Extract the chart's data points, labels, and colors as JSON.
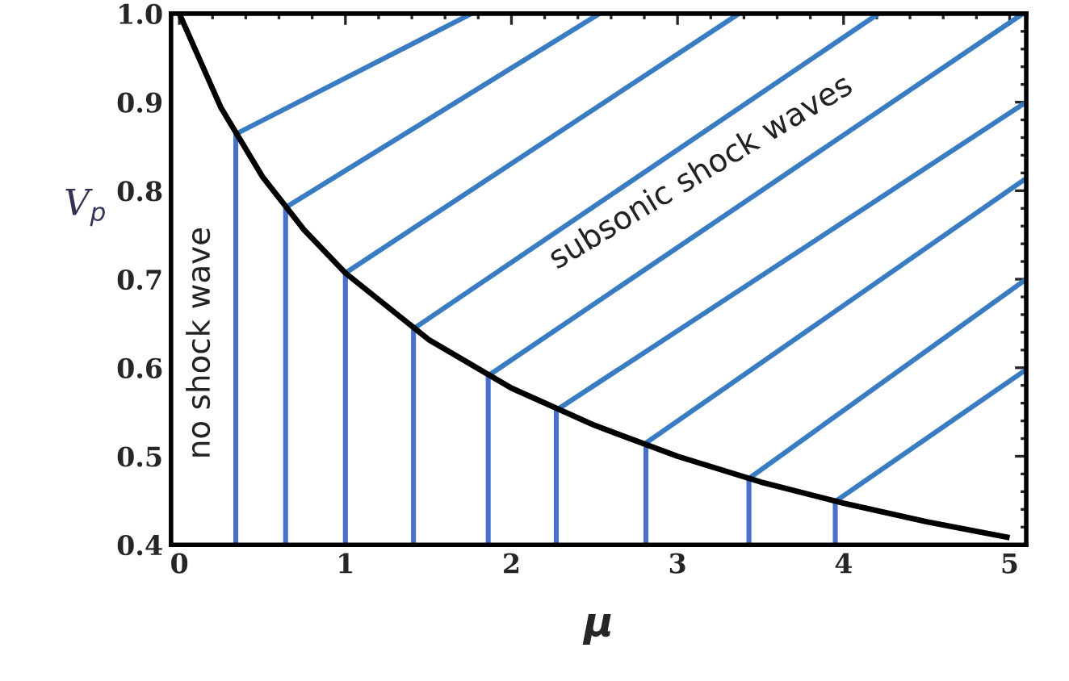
{
  "chart_data": {
    "type": "line",
    "xlabel": "μ",
    "ylabel": "V$_{p}$",
    "xlim": [
      -0.05,
      5.1
    ],
    "ylim": [
      0.4,
      1.0
    ],
    "xticks": [
      0,
      1,
      2,
      3,
      4,
      5
    ],
    "yticks": [
      {
        "value": 0.4,
        "label": "0.4"
      },
      {
        "value": 0.5,
        "label": "0.5"
      },
      {
        "value": 0.6,
        "label": "0.6"
      },
      {
        "value": 0.7,
        "label": "0.7"
      },
      {
        "value": 0.8,
        "label": "0.8"
      },
      {
        "value": 0.9,
        "label": "0.9"
      },
      {
        "value": 1.0,
        "label": "1.0"
      }
    ],
    "annotations": [
      "no shock wave",
      "subsonic shock waves"
    ],
    "series": [
      {
        "color": "#4a6fcc",
        "x": [
          0.34,
          0.34
        ],
        "values": [
          0.4,
          0.864
        ]
      },
      {
        "color": "#4a6fcc",
        "x": [
          0.64,
          0.64
        ],
        "values": [
          0.4,
          0.781
        ]
      },
      {
        "color": "#4a6fcc",
        "x": [
          1.0,
          1.0
        ],
        "values": [
          0.4,
          0.707
        ]
      },
      {
        "color": "#4a6fcc",
        "x": [
          1.41,
          1.41
        ],
        "values": [
          0.4,
          0.644
        ]
      },
      {
        "color": "#4a6fcc",
        "x": [
          1.86,
          1.86
        ],
        "values": [
          0.4,
          0.591
        ]
      },
      {
        "color": "#4a6fcc",
        "x": [
          2.27,
          2.27
        ],
        "values": [
          0.4,
          0.552
        ]
      },
      {
        "color": "#4a6fcc",
        "x": [
          2.81,
          2.81
        ],
        "values": [
          0.4,
          0.515
        ]
      },
      {
        "color": "#4a6fcc",
        "x": [
          3.43,
          3.43
        ],
        "values": [
          0.4,
          0.475
        ]
      },
      {
        "color": "#4a6fcc",
        "x": [
          3.95,
          3.95
        ],
        "values": [
          0.4,
          0.449
        ]
      },
      {
        "color": "#3a7cc2",
        "x": [
          0.34,
          1.76
        ],
        "values": [
          0.864,
          1.0
        ]
      },
      {
        "color": "#3a7cc2",
        "x": [
          0.64,
          2.53
        ],
        "values": [
          0.781,
          1.0
        ]
      },
      {
        "color": "#3a7cc2",
        "x": [
          1.0,
          3.37
        ],
        "values": [
          0.707,
          1.0
        ]
      },
      {
        "color": "#3a7cc2",
        "x": [
          1.41,
          4.21
        ],
        "values": [
          0.644,
          1.0
        ]
      },
      {
        "color": "#3a7cc2",
        "x": [
          1.86,
          5.08
        ],
        "values": [
          0.591,
          1.0
        ]
      },
      {
        "color": "#3a7cc2",
        "x": [
          2.27,
          5.1
        ],
        "values": [
          0.552,
          0.9
        ]
      },
      {
        "color": "#3a7cc2",
        "x": [
          2.81,
          5.1
        ],
        "values": [
          0.515,
          0.814
        ]
      },
      {
        "color": "#3a7cc2",
        "x": [
          3.43,
          5.1
        ],
        "values": [
          0.475,
          0.7
        ]
      },
      {
        "color": "#3a7cc2",
        "x": [
          3.95,
          5.1
        ],
        "values": [
          0.449,
          0.598
        ]
      },
      {
        "color": "#000000",
        "x": [
          0,
          0.25,
          0.5,
          0.75,
          1,
          1.5,
          2,
          2.5,
          3,
          3.5,
          4,
          4.5,
          5
        ],
        "values": [
          1.0,
          0.894,
          0.816,
          0.756,
          0.707,
          0.632,
          0.577,
          0.535,
          0.5,
          0.471,
          0.447,
          0.426,
          0.408
        ]
      }
    ]
  }
}
